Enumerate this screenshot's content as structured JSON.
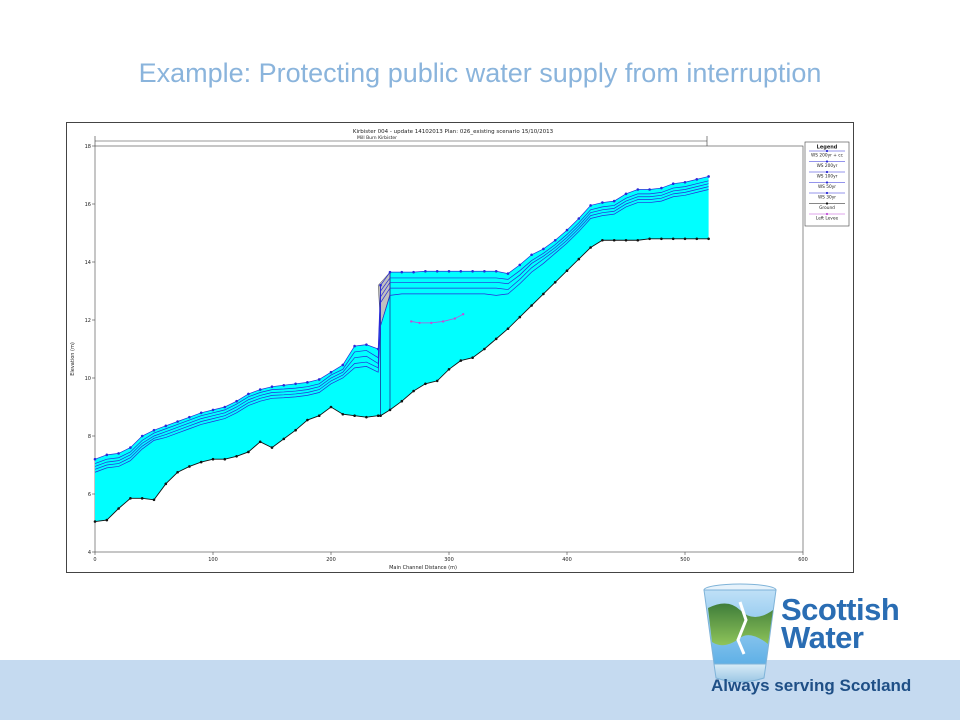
{
  "slide": {
    "title": "Example: Protecting public water supply from interruption"
  },
  "logo": {
    "line1": "Scottish",
    "line2": "Water",
    "tagline": "Always serving Scotland",
    "color": "#2a6db3"
  },
  "chart_data": {
    "type": "area",
    "title": "Kirbister 004 - update 14102013      Plan: 026_existing scenario     15/10/2013",
    "reach_label": "Mill Burn Kirbister",
    "xlabel": "Main Channel Distance (m)",
    "ylabel": "Elevation (m)",
    "xlim": [
      0,
      600
    ],
    "ylim": [
      4,
      18
    ],
    "xticks": [
      "0",
      "100",
      "200",
      "300",
      "400",
      "500",
      "600"
    ],
    "yticks": [
      "4",
      "6",
      "8",
      "10",
      "12",
      "14",
      "16",
      "18"
    ],
    "legend_title": "Legend",
    "fill_color": "#00ffff",
    "colors": {
      "ws": "#2a2ad8",
      "ground": "#111111",
      "levee": "#c04fd8",
      "fill": "#00ffff",
      "structure": "#c0c0c0"
    },
    "legend": [
      {
        "name": "WS 200yr + cc",
        "color": "#2a2ad8"
      },
      {
        "name": "WS 200yr",
        "color": "#2a2ad8"
      },
      {
        "name": "WS 100yr",
        "color": "#2a2ad8"
      },
      {
        "name": "WS 50yr",
        "color": "#2a2ad8"
      },
      {
        "name": "WS 30yr",
        "color": "#2a2ad8"
      },
      {
        "name": "Ground",
        "color": "#111111"
      },
      {
        "name": "Left Levee",
        "color": "#c04fd8"
      }
    ],
    "x": [
      0,
      10,
      20,
      30,
      40,
      50,
      60,
      70,
      80,
      90,
      100,
      110,
      120,
      130,
      140,
      150,
      160,
      170,
      180,
      190,
      200,
      210,
      220,
      230,
      240,
      242,
      250,
      260,
      270,
      280,
      290,
      300,
      310,
      320,
      330,
      340,
      350,
      360,
      370,
      380,
      390,
      400,
      410,
      420,
      430,
      440,
      450,
      460,
      470,
      480,
      490,
      500,
      510,
      520
    ],
    "series": [
      {
        "name": "WS 200yr + cc",
        "values": [
          7.2,
          7.35,
          7.4,
          7.6,
          8.0,
          8.2,
          8.35,
          8.5,
          8.65,
          8.8,
          8.9,
          9.0,
          9.2,
          9.45,
          9.6,
          9.7,
          9.75,
          9.8,
          9.85,
          9.95,
          10.2,
          10.45,
          11.1,
          11.15,
          11.0,
          13.2,
          13.65,
          13.65,
          13.65,
          13.68,
          13.68,
          13.68,
          13.68,
          13.68,
          13.68,
          13.68,
          13.6,
          13.9,
          14.25,
          14.45,
          14.75,
          15.1,
          15.5,
          15.95,
          16.05,
          16.1,
          16.35,
          16.5,
          16.5,
          16.55,
          16.7,
          16.75,
          16.85,
          16.95
        ]
      },
      {
        "name": "WS 200yr",
        "values": [
          7.05,
          7.2,
          7.25,
          7.45,
          7.85,
          8.1,
          8.25,
          8.4,
          8.55,
          8.7,
          8.8,
          8.9,
          9.1,
          9.35,
          9.5,
          9.6,
          9.62,
          9.65,
          9.7,
          9.8,
          10.1,
          10.3,
          10.9,
          10.95,
          10.7,
          13.0,
          13.45,
          13.45,
          13.45,
          13.45,
          13.45,
          13.45,
          13.45,
          13.45,
          13.45,
          13.45,
          13.4,
          13.7,
          14.05,
          14.3,
          14.6,
          14.95,
          15.35,
          15.8,
          15.9,
          15.95,
          16.2,
          16.35,
          16.35,
          16.4,
          16.55,
          16.6,
          16.7,
          16.8
        ]
      },
      {
        "name": "WS 100yr",
        "values": [
          6.95,
          7.1,
          7.15,
          7.35,
          7.75,
          8.0,
          8.15,
          8.3,
          8.45,
          8.6,
          8.7,
          8.8,
          9.0,
          9.25,
          9.4,
          9.5,
          9.52,
          9.55,
          9.6,
          9.7,
          10.0,
          10.2,
          10.7,
          10.75,
          10.5,
          12.8,
          13.3,
          13.3,
          13.3,
          13.3,
          13.3,
          13.3,
          13.3,
          13.3,
          13.3,
          13.3,
          13.25,
          13.55,
          13.95,
          14.2,
          14.5,
          14.85,
          15.25,
          15.7,
          15.8,
          15.85,
          16.1,
          16.25,
          16.25,
          16.3,
          16.45,
          16.5,
          16.6,
          16.7
        ]
      },
      {
        "name": "WS 50yr",
        "values": [
          6.85,
          7.0,
          7.05,
          7.25,
          7.65,
          7.92,
          8.05,
          8.2,
          8.35,
          8.5,
          8.6,
          8.7,
          8.9,
          9.15,
          9.3,
          9.4,
          9.42,
          9.45,
          9.5,
          9.6,
          9.9,
          10.1,
          10.5,
          10.55,
          10.35,
          12.6,
          13.1,
          13.1,
          13.1,
          13.1,
          13.1,
          13.1,
          13.1,
          13.1,
          13.1,
          13.1,
          13.05,
          13.4,
          13.8,
          14.1,
          14.4,
          14.75,
          15.15,
          15.6,
          15.7,
          15.75,
          16.0,
          16.15,
          16.15,
          16.2,
          16.35,
          16.4,
          16.5,
          16.6
        ]
      },
      {
        "name": "WS 30yr",
        "values": [
          6.75,
          6.9,
          6.95,
          7.15,
          7.55,
          7.85,
          7.95,
          8.1,
          8.25,
          8.4,
          8.5,
          8.6,
          8.8,
          9.05,
          9.2,
          9.3,
          9.32,
          9.35,
          9.4,
          9.5,
          9.8,
          10.0,
          10.35,
          10.4,
          10.2,
          11.8,
          12.85,
          12.9,
          12.9,
          12.9,
          12.9,
          12.9,
          12.9,
          12.9,
          12.9,
          12.85,
          12.9,
          13.25,
          13.65,
          13.95,
          14.3,
          14.65,
          15.05,
          15.5,
          15.6,
          15.65,
          15.9,
          16.05,
          16.05,
          16.1,
          16.25,
          16.3,
          16.4,
          16.5
        ]
      },
      {
        "name": "Ground",
        "values": [
          5.05,
          5.1,
          5.5,
          5.85,
          5.85,
          5.8,
          6.35,
          6.75,
          6.95,
          7.1,
          7.2,
          7.2,
          7.3,
          7.45,
          7.8,
          7.6,
          7.9,
          8.2,
          8.55,
          8.7,
          9.0,
          8.75,
          8.7,
          8.65,
          8.7,
          8.7,
          8.9,
          9.2,
          9.55,
          9.8,
          9.9,
          10.3,
          10.6,
          10.7,
          11.0,
          11.35,
          11.7,
          12.1,
          12.5,
          12.9,
          13.3,
          13.7,
          14.1,
          14.5,
          14.75,
          14.75,
          14.75,
          14.75,
          14.8,
          14.8,
          14.8,
          14.8,
          14.8,
          14.8
        ]
      }
    ],
    "left_levee": {
      "x": [
        268,
        275,
        285,
        295,
        305,
        312
      ],
      "values": [
        11.95,
        11.9,
        11.9,
        11.95,
        12.05,
        12.2
      ]
    }
  }
}
